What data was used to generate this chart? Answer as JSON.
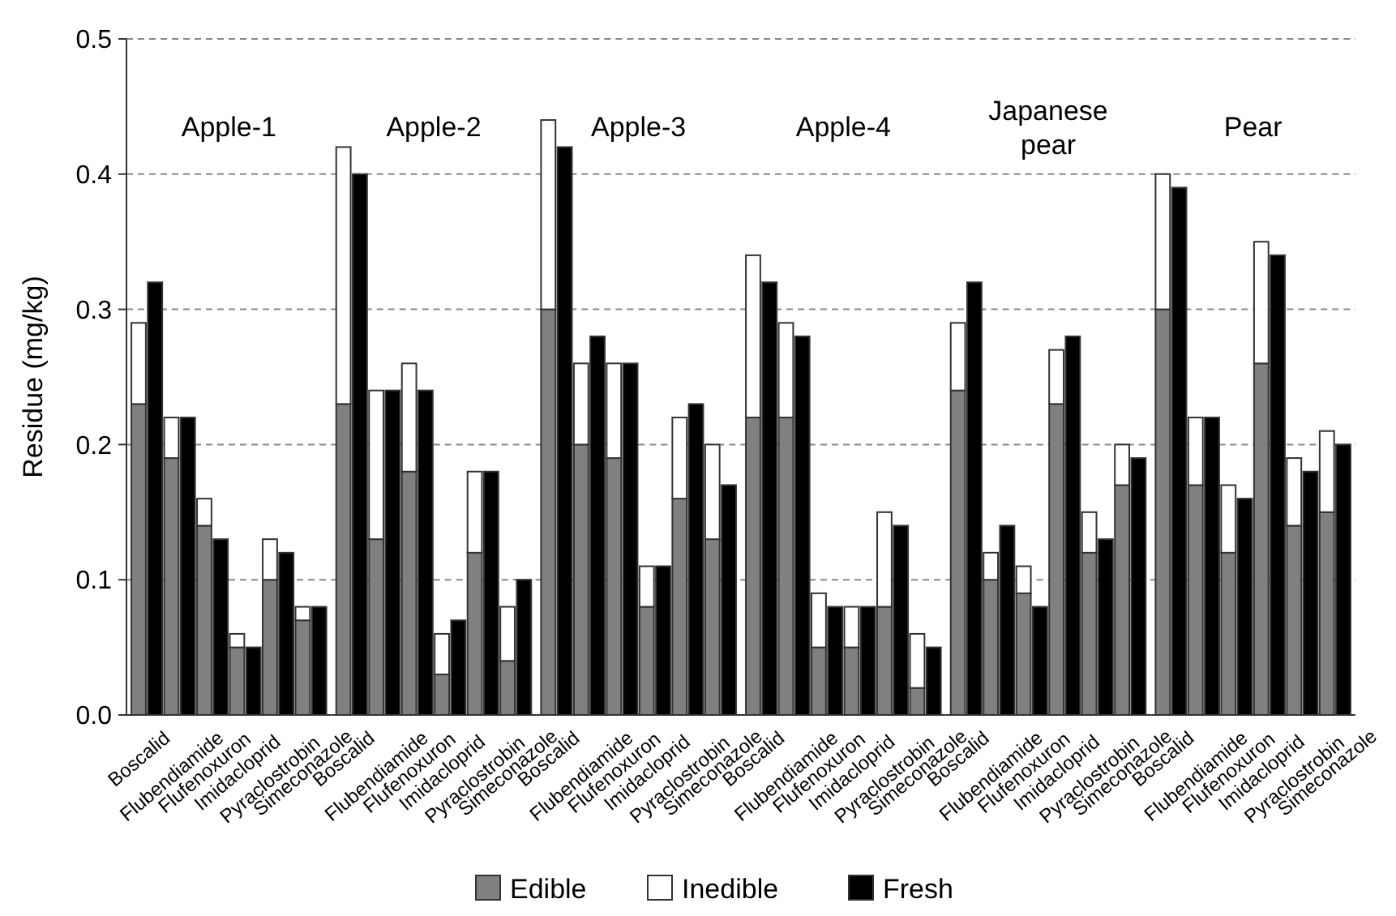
{
  "chart_data": [
    {
      "type": "bar",
      "title": "Apple-1",
      "ylabel": "Residue (mg/kg)",
      "stacked": true,
      "grid": "y",
      "legend": "bottom",
      "ylim": [
        0,
        0.5
      ],
      "yticks": [
        {
          "value": 0,
          "label": "0.0"
        },
        0.1,
        0.2,
        0.3,
        0.4,
        0.5
      ],
      "categories": [
        "Boscalid",
        null,
        "Flubendiamide",
        null,
        "Flufenoxuron",
        null,
        "Imidacloprid",
        null,
        "Pyraclostrobin",
        null,
        "Simeconazole",
        null
      ],
      "series": [
        {
          "name": "Edible",
          "color": "#808080",
          "values": [
            0.23,
            null,
            0.19,
            null,
            0.14,
            null,
            0.05,
            null,
            0.1,
            null,
            0.07,
            null
          ]
        },
        {
          "name": "Inedible",
          "color": "#ffffff",
          "values": [
            0.06,
            null,
            0.03,
            null,
            0.02,
            null,
            0.01,
            null,
            0.03,
            null,
            0.01,
            null
          ]
        },
        {
          "name": "Fresh",
          "color": "#000000",
          "values": [
            null,
            0.32,
            null,
            0.22,
            null,
            0.13,
            null,
            0.05,
            null,
            0.12,
            null,
            0.08
          ]
        }
      ]
    },
    {
      "type": "bar",
      "title": "Apple-2",
      "stacked": true,
      "grid": "y",
      "tick_labels": "x",
      "ylim": [
        0,
        0.5
      ],
      "yticks": [
        0,
        0.1,
        0.2,
        0.3,
        0.4,
        0.5
      ],
      "categories": [
        "Boscalid",
        null,
        "Flubendiamide",
        null,
        "Flufenoxuron",
        null,
        "Imidacloprid",
        null,
        "Pyraclostrobin",
        null,
        "Simeconazole",
        null
      ],
      "series": [
        {
          "color": "#808080",
          "values": [
            0.23,
            null,
            0.13,
            null,
            0.18,
            null,
            0.03,
            null,
            0.12,
            null,
            0.04,
            null
          ]
        },
        {
          "color": "#ffffff",
          "values": [
            0.19,
            null,
            0.11,
            null,
            0.08,
            null,
            0.03,
            null,
            0.06,
            null,
            0.04,
            null
          ]
        },
        {
          "color": "#000000",
          "values": [
            null,
            0.4,
            null,
            0.24,
            null,
            0.24,
            null,
            0.07,
            null,
            0.18,
            null,
            0.1
          ]
        }
      ]
    },
    {
      "type": "bar",
      "title": "Apple-3",
      "stacked": true,
      "grid": "y",
      "tick_labels": "x",
      "ylim": [
        0,
        0.5
      ],
      "yticks": [
        0,
        0.1,
        0.2,
        0.3,
        0.4,
        0.5
      ],
      "categories": [
        "Boscalid",
        null,
        "Flubendiamide",
        null,
        "Flufenoxuron",
        null,
        "Imidacloprid",
        null,
        "Pyraclostrobin",
        null,
        "Simeconazole",
        null
      ],
      "series": [
        {
          "color": "#808080",
          "values": [
            0.3,
            null,
            0.2,
            null,
            0.19,
            null,
            0.08,
            null,
            0.16,
            null,
            0.13,
            null
          ]
        },
        {
          "color": "#ffffff",
          "values": [
            0.14,
            null,
            0.06,
            null,
            0.07,
            null,
            0.03,
            null,
            0.06,
            null,
            0.07,
            null
          ]
        },
        {
          "color": "#000000",
          "values": [
            null,
            0.42,
            null,
            0.28,
            null,
            0.26,
            null,
            0.11,
            null,
            0.23,
            null,
            0.17
          ]
        }
      ]
    },
    {
      "type": "bar",
      "title": "Apple-4",
      "stacked": true,
      "grid": "y",
      "tick_labels": "x",
      "ylim": [
        0,
        0.5
      ],
      "yticks": [
        0,
        0.1,
        0.2,
        0.3,
        0.4,
        0.5
      ],
      "categories": [
        "Boscalid",
        null,
        "Flubendiamide",
        null,
        "Flufenoxuron",
        null,
        "Imidacloprid",
        null,
        "Pyraclostrobin",
        null,
        "Simeconazole",
        null
      ],
      "series": [
        {
          "color": "#808080",
          "values": [
            0.22,
            null,
            0.22,
            null,
            0.05,
            null,
            0.05,
            null,
            0.08,
            null,
            0.02,
            null
          ]
        },
        {
          "color": "#ffffff",
          "values": [
            0.12,
            null,
            0.07,
            null,
            0.04,
            null,
            0.03,
            null,
            0.07,
            null,
            0.04,
            null
          ]
        },
        {
          "color": "#000000",
          "values": [
            null,
            0.32,
            null,
            0.28,
            null,
            0.08,
            null,
            0.08,
            null,
            0.14,
            null,
            0.05
          ]
        }
      ]
    },
    {
      "type": "bar",
      "title": "Japanese pear",
      "stacked": true,
      "grid": "y",
      "tick_labels": "x",
      "ylim": [
        0,
        0.5
      ],
      "yticks": [
        0,
        0.1,
        0.2,
        0.3,
        0.4,
        0.5
      ],
      "categories": [
        "Boscalid",
        null,
        "Flubendiamide",
        null,
        "Flufenoxuron",
        null,
        "Imidacloprid",
        null,
        "Pyraclostrobin",
        null,
        "Simeconazole",
        null
      ],
      "series": [
        {
          "color": "#808080",
          "values": [
            0.24,
            null,
            0.1,
            null,
            0.09,
            null,
            0.23,
            null,
            0.12,
            null,
            0.17,
            null
          ]
        },
        {
          "color": "#ffffff",
          "values": [
            0.05,
            null,
            0.02,
            null,
            0.02,
            null,
            0.04,
            null,
            0.03,
            null,
            0.03,
            null
          ]
        },
        {
          "color": "#000000",
          "values": [
            null,
            0.32,
            null,
            0.14,
            null,
            0.08,
            null,
            0.28,
            null,
            0.13,
            null,
            0.19
          ]
        }
      ]
    },
    {
      "type": "bar",
      "title": "Pear",
      "stacked": true,
      "grid": "y",
      "tick_labels": "x",
      "ylim": [
        0,
        0.5
      ],
      "yticks": [
        0,
        0.1,
        0.2,
        0.3,
        0.4,
        0.5
      ],
      "categories": [
        "Boscalid",
        null,
        "Flubendiamide",
        null,
        "Flufenoxuron",
        null,
        "Imidacloprid",
        null,
        "Pyraclostrobin",
        null,
        "Simeconazole",
        null
      ],
      "series": [
        {
          "color": "#808080",
          "values": [
            0.3,
            null,
            0.17,
            null,
            0.12,
            null,
            0.26,
            null,
            0.14,
            null,
            0.15,
            null
          ]
        },
        {
          "color": "#ffffff",
          "values": [
            0.1,
            null,
            0.05,
            null,
            0.05,
            null,
            0.09,
            null,
            0.05,
            null,
            0.06,
            null
          ]
        },
        {
          "color": "#000000",
          "values": [
            null,
            0.39,
            null,
            0.22,
            null,
            0.16,
            null,
            0.34,
            null,
            0.18,
            null,
            0.2
          ]
        }
      ]
    }
  ]
}
